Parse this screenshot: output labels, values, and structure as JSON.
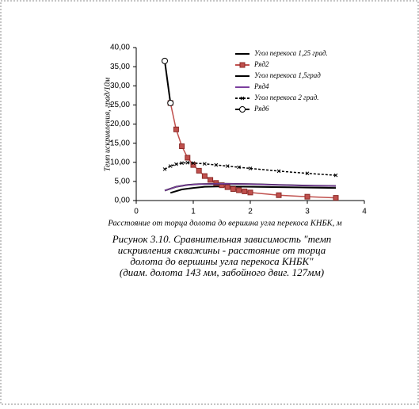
{
  "chart_data": {
    "type": "line",
    "y_label": "Темп искривления, град/10м",
    "x_label": "Расстояние от торца долота до вершина угла перекоса КНБК, м",
    "xlim": [
      0,
      4
    ],
    "xticks": [
      0,
      1,
      2,
      3,
      4
    ],
    "ylim": [
      0,
      40
    ],
    "yticks": [
      {
        "value": 0,
        "label": "0,00"
      },
      {
        "value": 5,
        "label": "5,00"
      },
      {
        "value": 10,
        "label": "10,00"
      },
      {
        "value": 15,
        "label": "15,00"
      },
      {
        "value": 20,
        "label": "20,00"
      },
      {
        "value": 25,
        "label": "25,00"
      },
      {
        "value": 30,
        "label": "30,00"
      },
      {
        "value": 35,
        "label": "35,00"
      },
      {
        "value": 40,
        "label": "40,00"
      }
    ],
    "legend": "top-right",
    "series": [
      {
        "name": "Угол перекоса 1,25 град.",
        "color": "#000000",
        "marker": "none",
        "dash": false,
        "x": [
          0.6,
          0.8,
          1.0,
          1.2,
          1.5,
          2.0,
          2.5,
          3.0,
          3.5
        ],
        "values": [
          2.0,
          2.9,
          3.3,
          3.6,
          3.7,
          3.6,
          3.5,
          3.4,
          3.3
        ]
      },
      {
        "name": "Ряд2",
        "color": "#c0504d",
        "marker": "square",
        "dash": false,
        "x": [
          0.6,
          0.7,
          0.8,
          0.9,
          1.0,
          1.1,
          1.2,
          1.3,
          1.4,
          1.5,
          1.6,
          1.7,
          1.8,
          1.9,
          2.0,
          2.5,
          3.0,
          3.5
        ],
        "values": [
          25.5,
          18.6,
          14.2,
          11.2,
          9.3,
          7.8,
          6.4,
          5.4,
          4.6,
          4.0,
          3.5,
          3.0,
          2.7,
          2.4,
          2.1,
          1.4,
          1.0,
          0.7
        ]
      },
      {
        "name": "Угол перекоса 1,5град",
        "color": "#000000",
        "marker": "none",
        "dash": false,
        "x": [
          0.5,
          0.7,
          0.9,
          1.1,
          1.5,
          2.0,
          2.5,
          3.0,
          3.5
        ],
        "values": [
          2.6,
          3.6,
          4.1,
          4.3,
          4.4,
          4.3,
          4.1,
          3.9,
          3.8
        ]
      },
      {
        "name": "Ряд4",
        "color": "#7b3f9e",
        "marker": "none",
        "dash": false,
        "x": [
          0.5,
          0.7,
          0.9,
          1.1,
          1.5,
          2.0,
          2.5,
          3.0,
          3.5
        ],
        "values": [
          2.6,
          3.6,
          4.1,
          4.3,
          4.4,
          4.3,
          4.1,
          3.9,
          3.8
        ]
      },
      {
        "name": "Угол перекоса 2 град.",
        "color": "#000000",
        "marker": "x",
        "dash": true,
        "x": [
          0.5,
          0.6,
          0.7,
          0.8,
          0.9,
          1.0,
          1.2,
          1.4,
          1.6,
          1.8,
          2.0,
          2.5,
          3.0,
          3.5
        ],
        "values": [
          8.2,
          9.0,
          9.5,
          9.8,
          9.9,
          9.8,
          9.6,
          9.3,
          9.0,
          8.7,
          8.4,
          7.7,
          7.1,
          6.6
        ]
      },
      {
        "name": "Ряд6",
        "color": "#000000",
        "marker": "circle",
        "dash": false,
        "x": [
          0.5,
          0.6
        ],
        "values": [
          36.5,
          25.5
        ]
      }
    ]
  },
  "caption": [
    "Рисунок  3.10. Сравнительная зависимость \"темп",
    "искривления скважины - расстояние от торца",
    "долота до вершины угла перекоса КНБК\"",
    "(диам. долота 143 мм, забойного двиг. 127мм)"
  ]
}
